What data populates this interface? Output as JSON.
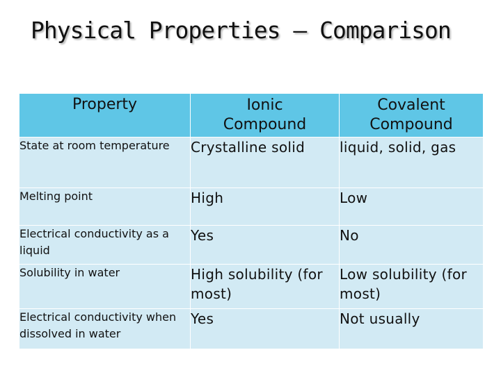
{
  "title": "Physical Properties – Comparison",
  "table": {
    "headers": [
      "Property",
      "Ionic Compound",
      "Covalent Compound"
    ],
    "rows": [
      [
        "State at room temperature",
        "Crystalline solid",
        "liquid, solid, gas"
      ],
      [
        "Melting point",
        "High",
        "Low"
      ],
      [
        "Electrical conductivity as a liquid",
        "Yes",
        "No"
      ],
      [
        "Solubility in water",
        "High solubility (for most)",
        "Low solubility (for most)"
      ],
      [
        "Electrical conductivity when dissolved in water",
        "Yes",
        "Not usually"
      ]
    ]
  },
  "colors": {
    "header_bg": "#5fc6e6",
    "cell_bg": "#d2eaf4",
    "text": "#111111"
  }
}
